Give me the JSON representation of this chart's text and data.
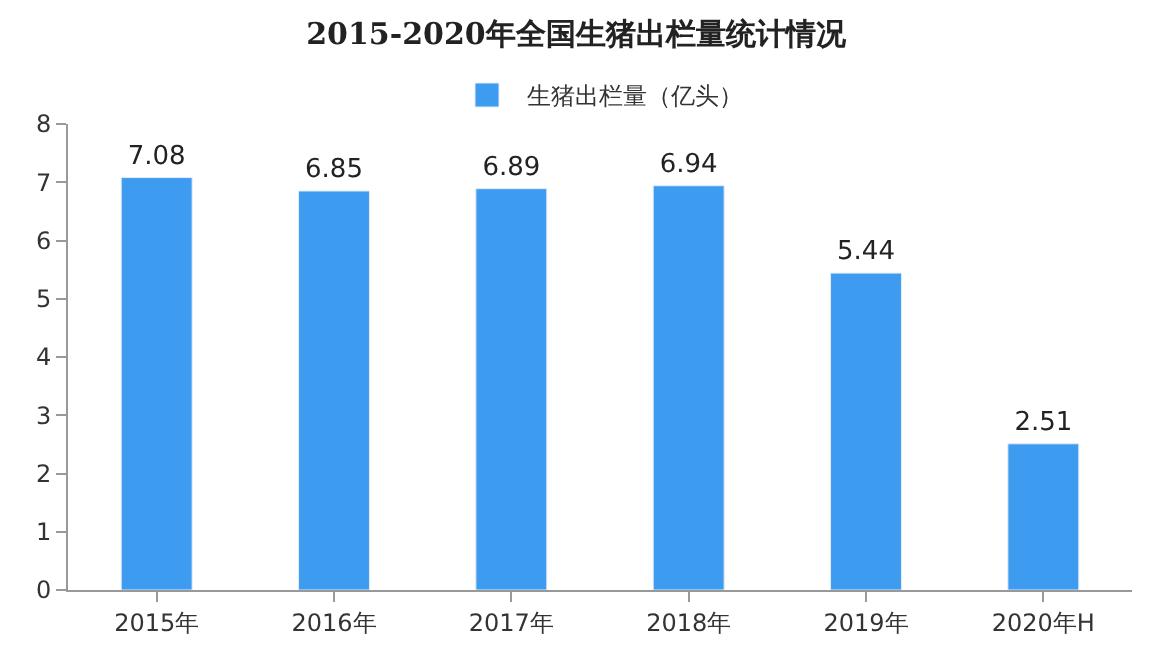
{
  "chart_data": {
    "type": "bar",
    "title": "2015-2020年全国生猪出栏量统计情况",
    "categories": [
      "2015年",
      "2016年",
      "2017年",
      "2018年",
      "2019年",
      "2020年H"
    ],
    "series": [
      {
        "name": "生猪出栏量（亿头）",
        "color": "#3d9bf0",
        "values": [
          7.08,
          6.85,
          6.89,
          6.94,
          5.44,
          2.51
        ]
      }
    ],
    "ylim": [
      0,
      8
    ],
    "yticks": [
      0,
      1,
      2,
      3,
      4,
      5,
      6,
      7,
      8
    ],
    "legend": "top",
    "data_labels": true
  }
}
